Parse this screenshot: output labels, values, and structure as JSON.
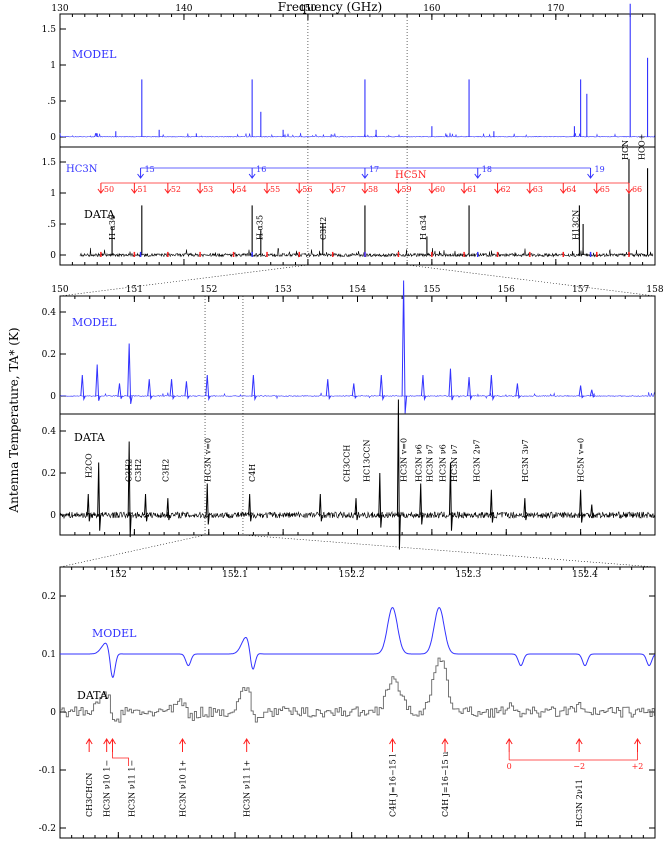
{
  "chart_data": [
    {
      "type": "line",
      "panel": "full-band",
      "xlabel": "Frequency (GHz)",
      "x_ticks": [
        130,
        140,
        150,
        160,
        170
      ],
      "xlim": [
        130,
        178
      ],
      "colors": {
        "model": "#3333ff",
        "data": "#000000",
        "markers": "#ff2020"
      },
      "model": {
        "label": "MODEL",
        "y_ticks": [
          "0",
          ".5",
          "1",
          "1.5"
        ],
        "ylim": [
          -0.1,
          1.9
        ],
        "peaks": [
          [
            133,
            0.05
          ],
          [
            134.5,
            0.08
          ],
          [
            136.6,
            0.8
          ],
          [
            138,
            0.1
          ],
          [
            141,
            0.05
          ],
          [
            145.5,
            0.8
          ],
          [
            146.2,
            0.35
          ],
          [
            148,
            0.1
          ],
          [
            154.6,
            0.8
          ],
          [
            155.5,
            0.1
          ],
          [
            160,
            0.15
          ],
          [
            163,
            0.8
          ],
          [
            165,
            0.08
          ],
          [
            171.5,
            0.15
          ],
          [
            172,
            0.8
          ],
          [
            172.5,
            0.6
          ],
          [
            176,
            1.85
          ],
          [
            177.4,
            1.1
          ]
        ]
      },
      "data": {
        "label": "DATA",
        "y_ticks": [
          "0",
          ".5",
          "1",
          "1.5"
        ],
        "ylim": [
          -0.1,
          1.9
        ],
        "peaks": [
          [
            134.2,
            0.45
          ],
          [
            136.6,
            0.8
          ],
          [
            145.5,
            0.8
          ],
          [
            146.2,
            0.4
          ],
          [
            151.2,
            0.5
          ],
          [
            154.6,
            0.8
          ],
          [
            159.6,
            0.3
          ],
          [
            163,
            0.8
          ],
          [
            171.9,
            0.8
          ],
          [
            172.2,
            0.5
          ],
          [
            175.9,
            1.55
          ],
          [
            177.4,
            1.4
          ]
        ]
      },
      "hc3n_groups": [
        {
          "label": "HC3N",
          "color": "#3333ff",
          "transitions": [
            {
              "x": 136.5,
              "label": "15"
            },
            {
              "x": 145.5,
              "label": "16"
            },
            {
              "x": 154.6,
              "label": "17"
            },
            {
              "x": 163.7,
              "label": "18"
            },
            {
              "x": 172.8,
              "label": "19"
            }
          ]
        },
        {
          "label": "HC5N",
          "color": "#ff2020",
          "transitions": [
            {
              "x": 133.3,
              "label": "50"
            },
            {
              "x": 136.0,
              "label": "51"
            },
            {
              "x": 138.7,
              "label": "52"
            },
            {
              "x": 141.3,
              "label": "53"
            },
            {
              "x": 144.0,
              "label": "54"
            },
            {
              "x": 146.7,
              "label": "55"
            },
            {
              "x": 149.3,
              "label": "56"
            },
            {
              "x": 152.0,
              "label": "57"
            },
            {
              "x": 154.6,
              "label": "58"
            },
            {
              "x": 157.3,
              "label": "59"
            },
            {
              "x": 160.0,
              "label": "60"
            },
            {
              "x": 162.6,
              "label": "61"
            },
            {
              "x": 165.3,
              "label": "62"
            },
            {
              "x": 167.9,
              "label": "63"
            },
            {
              "x": 170.6,
              "label": "64"
            },
            {
              "x": 173.3,
              "label": "65"
            },
            {
              "x": 175.9,
              "label": "66"
            }
          ]
        }
      ],
      "annotations": [
        {
          "x": 134.6,
          "text": "H α36"
        },
        {
          "x": 146.5,
          "text": "H α35"
        },
        {
          "x": 151.6,
          "text": "C3H2"
        },
        {
          "x": 159.7,
          "text": "H α34"
        },
        {
          "x": 172.0,
          "text": "H13CN"
        },
        {
          "x": 176.0,
          "text": "HCN"
        },
        {
          "x": 177.3,
          "text": "HCO+"
        }
      ]
    },
    {
      "type": "line",
      "panel": "zoom-150-158",
      "ylabel": "Antenna Temperature, TA* (K)",
      "x_ticks": [
        "150",
        "151",
        "152",
        "153",
        "154",
        "155",
        "156",
        "157",
        "158"
      ],
      "xlim": [
        150,
        158
      ],
      "model": {
        "label": "MODEL",
        "y_ticks": [
          "0",
          "0.2",
          "0.4"
        ],
        "ylim": [
          -0.05,
          0.55
        ],
        "peaks": [
          [
            150.3,
            0.1
          ],
          [
            150.5,
            0.15
          ],
          [
            150.8,
            0.06
          ],
          [
            150.93,
            0.25
          ],
          [
            151.2,
            0.08
          ],
          [
            151.5,
            0.08
          ],
          [
            151.7,
            0.07
          ],
          [
            151.98,
            0.1
          ],
          [
            152.6,
            0.1
          ],
          [
            153.6,
            0.08
          ],
          [
            153.95,
            0.06
          ],
          [
            154.32,
            0.1
          ],
          [
            154.62,
            0.55
          ],
          [
            154.88,
            0.1
          ],
          [
            155.25,
            0.13
          ],
          [
            155.5,
            0.09
          ],
          [
            155.8,
            0.1
          ],
          [
            156.15,
            0.06
          ],
          [
            157.0,
            0.05
          ],
          [
            157.15,
            0.03
          ]
        ]
      },
      "data": {
        "label": "DATA",
        "y_ticks": [
          "0",
          "0.2",
          "0.4"
        ],
        "ylim": [
          -0.12,
          0.55
        ],
        "peaks": [
          [
            150.38,
            0.1
          ],
          [
            150.52,
            0.25
          ],
          [
            150.93,
            0.35
          ],
          [
            151.15,
            0.1
          ],
          [
            151.45,
            0.08
          ],
          [
            151.98,
            0.15
          ],
          [
            152.55,
            0.1
          ],
          [
            153.5,
            0.1
          ],
          [
            153.98,
            0.08
          ],
          [
            154.3,
            0.2
          ],
          [
            154.55,
            0.55
          ],
          [
            154.85,
            0.15
          ],
          [
            155.25,
            0.25
          ],
          [
            155.8,
            0.12
          ],
          [
            156.25,
            0.08
          ],
          [
            157.0,
            0.12
          ],
          [
            157.15,
            0.05
          ]
        ]
      },
      "annotations": [
        {
          "x": 150.38,
          "text": "H2CO"
        },
        {
          "x": 150.92,
          "text": "C3H2"
        },
        {
          "x": 151.05,
          "text": "C3H2"
        },
        {
          "x": 151.42,
          "text": "C3H2"
        },
        {
          "x": 151.98,
          "text": "HC3N v=0"
        },
        {
          "x": 152.58,
          "text": "C4H"
        },
        {
          "x": 153.85,
          "text": "CH3CCH"
        },
        {
          "x": 154.12,
          "text": "HC13CCN"
        },
        {
          "x": 154.62,
          "text": "HC3N v=0"
        },
        {
          "x": 154.82,
          "text": "HC3N ν6"
        },
        {
          "x": 154.97,
          "text": "HC3N ν7"
        },
        {
          "x": 155.14,
          "text": "HC3N ν6"
        },
        {
          "x": 155.3,
          "text": "HC3N ν7"
        },
        {
          "x": 155.6,
          "text": "HC3N 2ν7"
        },
        {
          "x": 156.25,
          "text": "HC3N 3ν7"
        },
        {
          "x": 157.0,
          "text": "HC5N v=0"
        }
      ]
    },
    {
      "type": "line",
      "panel": "zoom-151.95-152.45",
      "x_ticks": [
        "152",
        "152.1",
        "152.2",
        "152.3",
        "152.4"
      ],
      "xlim": [
        151.95,
        152.46
      ],
      "y_ticks": [
        "-0.2",
        "-0.1",
        "0",
        "0.1",
        "0.2"
      ],
      "ylim": [
        -0.22,
        0.23
      ],
      "model": {
        "label": "MODEL",
        "baseline": 0.1,
        "features": [
          [
            151.99,
            0.02,
            -0.05
          ],
          [
            152.055,
            0.0,
            -0.02
          ],
          [
            152.11,
            0.03,
            -0.04
          ],
          [
            152.235,
            0.08,
            0
          ],
          [
            152.275,
            0.08,
            0
          ],
          [
            152.34,
            0.0,
            -0.02
          ],
          [
            152.395,
            0.0,
            -0.02
          ],
          [
            152.45,
            0.0,
            -0.02
          ]
        ]
      },
      "data": {
        "label": "DATA",
        "baseline": 0.0,
        "features": [
          [
            151.99,
            0.04,
            -0.04
          ],
          [
            152.055,
            0.02,
            -0.02
          ],
          [
            152.11,
            0.05,
            -0.04
          ],
          [
            152.235,
            0.06,
            0
          ],
          [
            152.275,
            0.09,
            0
          ],
          [
            152.34,
            0.01,
            -0.01
          ],
          [
            152.395,
            0.01,
            -0.01
          ],
          [
            152.45,
            0.0,
            0
          ]
        ]
      },
      "markers": [
        {
          "x": 151.975,
          "label": "CH3CHCN"
        },
        {
          "x": 151.99,
          "label": "HC3N ν10 1−"
        },
        {
          "x": 151.995,
          "label": "HC3N ν11 1−"
        },
        {
          "x": 152.055,
          "label": "HC3N ν10 1+"
        },
        {
          "x": 152.11,
          "label": "HC3N ν11 1+"
        },
        {
          "x": 152.235,
          "label": "C4H J=16−15 l"
        },
        {
          "x": 152.28,
          "label": "C4H J=16−15 u"
        },
        {
          "x": 152.335,
          "label": "0"
        },
        {
          "x": 152.395,
          "label": "−2"
        },
        {
          "x": 152.445,
          "label": "+2"
        }
      ],
      "marker_group_label": "HC3N 2ν11"
    }
  ]
}
